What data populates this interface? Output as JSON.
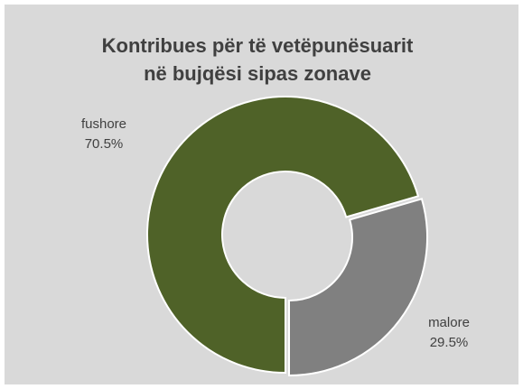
{
  "chart_data": {
    "type": "pie",
    "title": [
      "Kontribues për të vetëpunësuarit",
      "në bujqësi sipas zonave"
    ],
    "categories": [
      "fushore",
      "malore"
    ],
    "values": [
      70.5,
      29.5
    ],
    "value_labels": [
      "70.5%",
      "29.5%"
    ],
    "colors": [
      "#4f6228",
      "#808080"
    ]
  }
}
